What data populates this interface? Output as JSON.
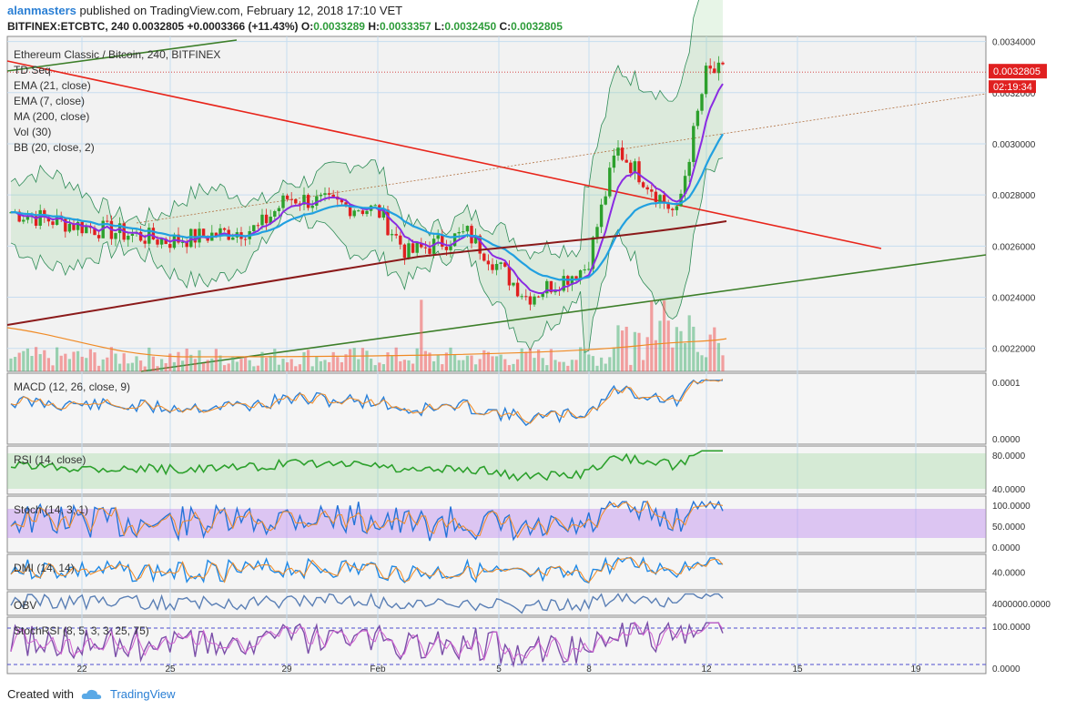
{
  "header": {
    "user": "alanmasters",
    "published_text": "published on TradingView.com, February 12, 2018 17:10 VET",
    "symbol": "BITFINEX:ETCBTC, 240",
    "last": "0.0032805",
    "change": "+0.0003366 (+11.43%)",
    "o_label": "O:",
    "o_val": "0.0033289",
    "h_label": "H:",
    "h_val": "0.0033357",
    "l_label": "L:",
    "l_val": "0.0032450",
    "c_label": "C:",
    "c_val": "0.0032805"
  },
  "footer": {
    "created_with": "Created with",
    "brand": "TradingView"
  },
  "colors": {
    "up": "#2ca02c",
    "down": "#e02020",
    "bg_main": "#e6f4e0",
    "ema21": "#21a0e0",
    "ema7": "#8a2be2",
    "ma200": "#8b1a1a",
    "bb": "#2e8b57",
    "trend_red": "#e8251b",
    "trend_green": "#3d7f2a"
  },
  "chart_data": {
    "type": "candlestick",
    "title": "Ethereum Classic / Bitcoin, 240, BITFINEX",
    "legend": [
      "TD Seq",
      "EMA (21, close)",
      "EMA (7, close)",
      "MA (200, close)",
      "Vol (30)",
      "BB (20, close, 2)"
    ],
    "price_axis": {
      "ticks": [
        "0.0034000",
        "0.0032000",
        "0.0030000",
        "0.0028000",
        "0.0026000",
        "0.0024000",
        "0.0022000"
      ],
      "range": [
        0.00211,
        0.00342
      ]
    },
    "last_price_label": "0.0032805",
    "countdown_label": "02:19:34",
    "x_ticks": [
      "22",
      "25",
      "29",
      "Feb",
      "5",
      "8",
      "12",
      "15",
      "19"
    ],
    "price_path_approx": [
      {
        "x": "Jan 19",
        "y": 0.00275
      },
      {
        "x": "Jan 22",
        "y": 0.00268
      },
      {
        "x": "Jan 25",
        "y": 0.00262
      },
      {
        "x": "Jan 28",
        "y": 0.00267
      },
      {
        "x": "Jan 29",
        "y": 0.00279
      },
      {
        "x": "Feb 1",
        "y": 0.00274
      },
      {
        "x": "Feb 2",
        "y": 0.00257
      },
      {
        "x": "Feb 4",
        "y": 0.00265
      },
      {
        "x": "Feb 6",
        "y": 0.0024
      },
      {
        "x": "Feb 8",
        "y": 0.00252
      },
      {
        "x": "Feb 9",
        "y": 0.00298
      },
      {
        "x": "Feb 11",
        "y": 0.00272
      },
      {
        "x": "Feb 12",
        "y": 0.00328
      }
    ],
    "panes": [
      {
        "name": "MACD (12, 26, close, 9)",
        "ticks": [
          "0.0001",
          "0.0000"
        ]
      },
      {
        "name": "RSI (14, close)",
        "ticks": [
          "80.0000",
          "40.0000"
        ]
      },
      {
        "name": "Stoch (14, 3, 1)",
        "ticks": [
          "100.0000",
          "50.0000",
          "0.0000"
        ]
      },
      {
        "name": "DMI (14, 14)",
        "ticks": [
          "40.0000"
        ]
      },
      {
        "name": "OBV",
        "ticks": [
          "4000000.0000"
        ]
      },
      {
        "name": "StochRSI (8, 5, 3, 3, 25, 75)",
        "ticks": [
          "100.0000",
          "0.0000"
        ]
      }
    ]
  }
}
